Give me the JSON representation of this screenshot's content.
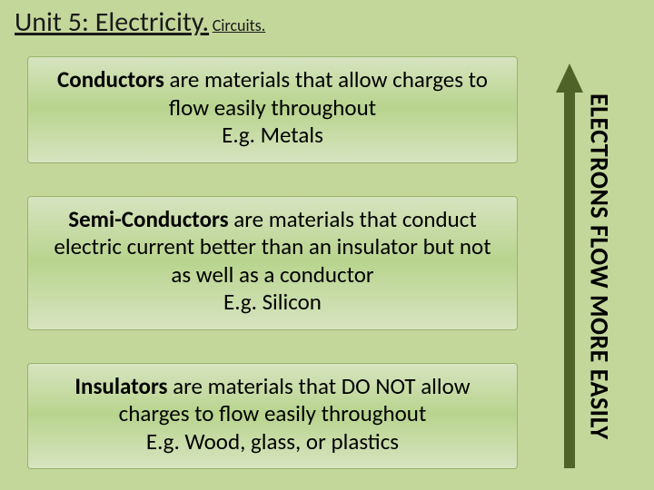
{
  "title": {
    "unit": "Unit 5: Electricity.",
    "subtitle": "Circuits."
  },
  "cards": {
    "conductors": {
      "term": "Conductors",
      "rest": " are materials that allow charges to flow easily throughout",
      "example": "E.g. Metals"
    },
    "semiconductors": {
      "term": "Semi-Conductors",
      "rest": " are materials that conduct electric current better than an insulator but not as well as a conductor",
      "example": "E.g. Silicon"
    },
    "insulators": {
      "term": "Insulators",
      "rest": " are materials that DO NOT allow charges to flow easily throughout",
      "example": "E.g. Wood, glass, or plastics"
    }
  },
  "arrow": {
    "label": "ELECTRONS FLOW MORE EASILY",
    "color": "#4f6228"
  },
  "colors": {
    "slide_bg": "#c4d79b",
    "card_gradient_top": "#d7e4c0",
    "card_gradient_mid": "#b8d48e",
    "card_border": "#99b36b",
    "text": "#000000"
  },
  "typography": {
    "title_fontsize": 30,
    "subtitle_fontsize": 18,
    "card_fontsize": 25,
    "arrow_label_fontsize": 28
  }
}
